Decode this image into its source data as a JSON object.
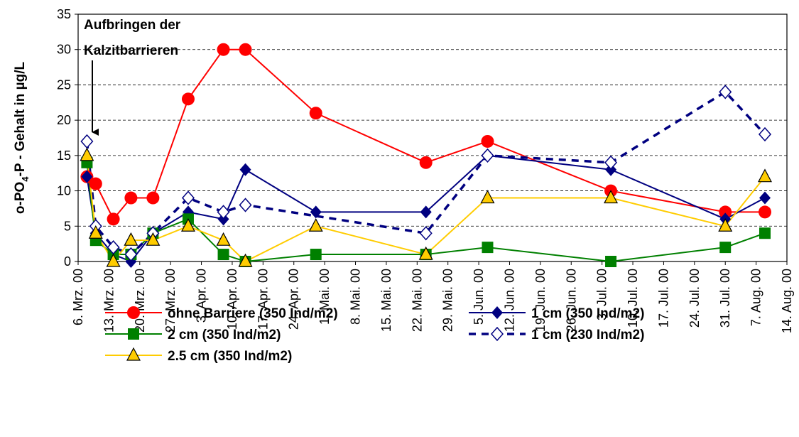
{
  "chart_data": {
    "type": "line",
    "y_label": {
      "main": "o-PO",
      "sub": "4",
      "rest": "-P - Gehalt in µg/L"
    },
    "annotation": [
      "Aufbringen der",
      "Kalzitbarrieren"
    ],
    "xlim": [
      "2000-03-06",
      "2000-08-14"
    ],
    "xticks": [
      {
        "value": "2000-03-06",
        "label": "6. Mrz. 00"
      },
      {
        "value": "2000-03-13",
        "label": "13. Mrz. 00"
      },
      {
        "value": "2000-03-20",
        "label": "20. Mrz. 00"
      },
      {
        "value": "2000-03-27",
        "label": "27. Mrz. 00"
      },
      {
        "value": "2000-04-03",
        "label": "3. Apr. 00"
      },
      {
        "value": "2000-04-10",
        "label": "10. Apr. 00"
      },
      {
        "value": "2000-04-17",
        "label": "17. Apr. 00"
      },
      {
        "value": "2000-04-24",
        "label": "24. Apr. 00"
      },
      {
        "value": "2000-05-01",
        "label": "1. Mai. 00"
      },
      {
        "value": "2000-05-08",
        "label": "8. Mai. 00"
      },
      {
        "value": "2000-05-15",
        "label": "15. Mai. 00"
      },
      {
        "value": "2000-05-22",
        "label": "22. Mai. 00"
      },
      {
        "value": "2000-05-29",
        "label": "29. Mai. 00"
      },
      {
        "value": "2000-06-05",
        "label": "5. Jun. 00"
      },
      {
        "value": "2000-06-12",
        "label": "12. Jun. 00"
      },
      {
        "value": "2000-06-19",
        "label": "19. Jun. 00"
      },
      {
        "value": "2000-06-26",
        "label": "26. Jun. 00"
      },
      {
        "value": "2000-07-03",
        "label": "3. Jul. 00"
      },
      {
        "value": "2000-07-10",
        "label": "10. Jul. 00"
      },
      {
        "value": "2000-07-17",
        "label": "17. Jul. 00"
      },
      {
        "value": "2000-07-24",
        "label": "24. Jul. 00"
      },
      {
        "value": "2000-07-31",
        "label": "31. Jul. 00"
      },
      {
        "value": "2000-08-07",
        "label": "7. Aug. 00"
      },
      {
        "value": "2000-08-14",
        "label": "14. Aug. 00"
      }
    ],
    "ylim": [
      0,
      35
    ],
    "yticks": [
      0,
      5,
      10,
      15,
      20,
      25,
      30,
      35
    ],
    "grid": true,
    "series": [
      {
        "name": "ohne Barriere (350 Ind/m2)",
        "color": "#ff0000",
        "marker": "circle",
        "dashed": false,
        "x": [
          "2000-03-08",
          "2000-03-10",
          "2000-03-14",
          "2000-03-18",
          "2000-03-23",
          "2000-03-31",
          "2000-04-08",
          "2000-04-13",
          "2000-04-29",
          "2000-05-24",
          "2000-06-07",
          "2000-07-05",
          "2000-07-31",
          "2000-08-09"
        ],
        "values": [
          12,
          11,
          6,
          9,
          9,
          23,
          30,
          30,
          21,
          14,
          17,
          10,
          7,
          7
        ]
      },
      {
        "name": "1 cm (350 Ind/m2)",
        "color": "#000080",
        "marker": "diamond",
        "dashed": false,
        "x": [
          "2000-03-08",
          "2000-03-10",
          "2000-03-14",
          "2000-03-18",
          "2000-03-23",
          "2000-03-31",
          "2000-04-08",
          "2000-04-13",
          "2000-04-29",
          "2000-05-24",
          "2000-06-07",
          "2000-07-05",
          "2000-07-31",
          "2000-08-09"
        ],
        "values": [
          12,
          4,
          1,
          0,
          4,
          7,
          6,
          13,
          7,
          7,
          15,
          13,
          6,
          9
        ]
      },
      {
        "name": "2 cm (350 Ind/m2)",
        "color": "#008000",
        "marker": "square",
        "dashed": false,
        "x": [
          "2000-03-08",
          "2000-03-10",
          "2000-03-14",
          "2000-03-18",
          "2000-03-23",
          "2000-03-31",
          "2000-04-08",
          "2000-04-13",
          "2000-04-29",
          "2000-05-24",
          "2000-06-07",
          "2000-07-05",
          "2000-07-31",
          "2000-08-09"
        ],
        "values": [
          14,
          3,
          1,
          1,
          4,
          6,
          1,
          0,
          1,
          1,
          2,
          0,
          2,
          4
        ]
      },
      {
        "name": "1 cm (230 Ind/m2)",
        "color": "#000080",
        "marker": "open-diamond",
        "dashed": true,
        "x": [
          "2000-03-08",
          "2000-03-10",
          "2000-03-14",
          "2000-03-18",
          "2000-03-23",
          "2000-03-31",
          "2000-04-08",
          "2000-04-13",
          "2000-05-24",
          "2000-06-07",
          "2000-07-05",
          "2000-07-31",
          "2000-08-09"
        ],
        "values": [
          17,
          5,
          2,
          1,
          4,
          9,
          7,
          8,
          4,
          15,
          14,
          24,
          18
        ]
      },
      {
        "name": "2.5 cm (350 Ind/m2)",
        "color": "#ffcc00",
        "marker": "triangle",
        "dashed": false,
        "x": [
          "2000-03-08",
          "2000-03-10",
          "2000-03-14",
          "2000-03-18",
          "2000-03-23",
          "2000-03-31",
          "2000-04-08",
          "2000-04-13",
          "2000-04-29",
          "2000-05-24",
          "2000-06-07",
          "2000-07-05",
          "2000-07-31",
          "2000-08-09"
        ],
        "values": [
          15,
          4,
          0,
          3,
          3,
          5,
          3,
          0,
          5,
          1,
          9,
          9,
          5,
          12
        ]
      }
    ]
  }
}
